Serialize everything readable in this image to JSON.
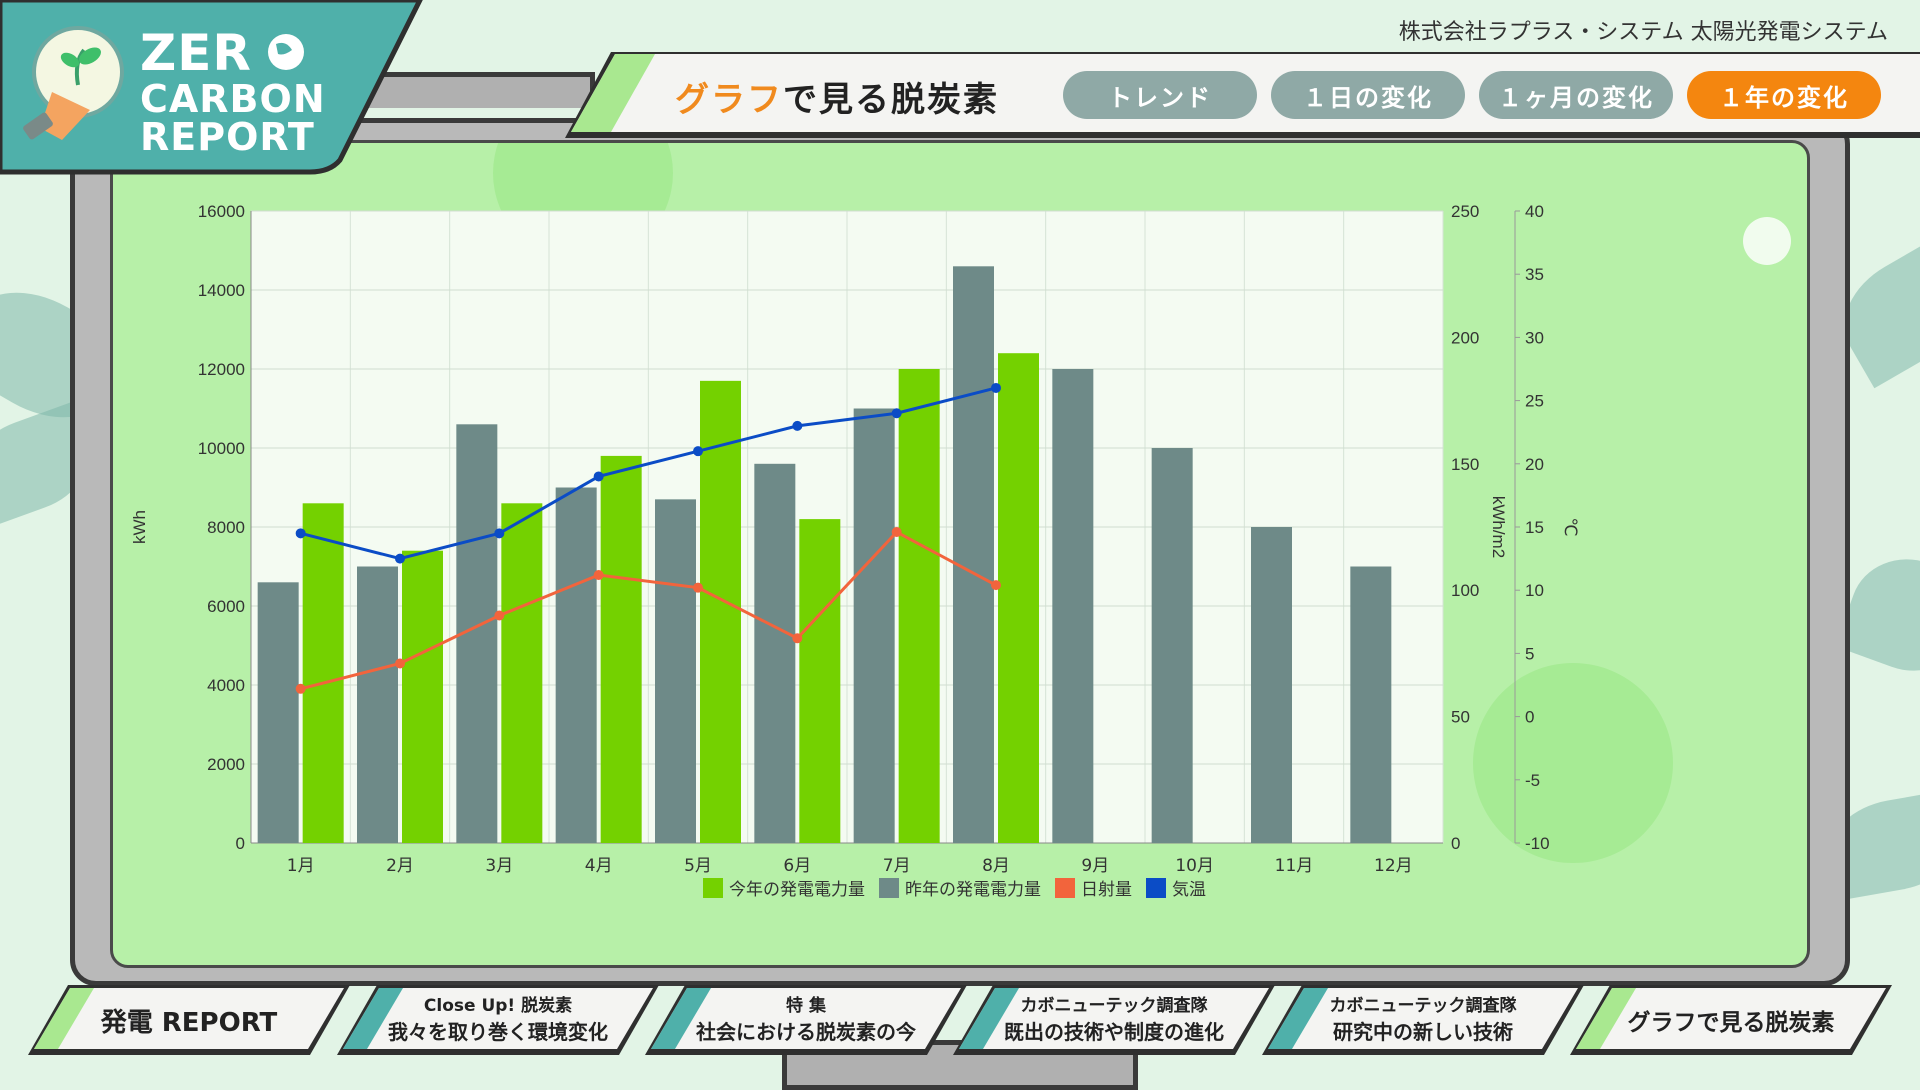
{
  "app": {
    "logo_line1": "ZER",
    "logo_line2": "CARBON",
    "logo_line3": "REPORT",
    "company": "株式会社ラプラス・システム 太陽光発電システム"
  },
  "header": {
    "title_accent": "グラフ",
    "title_rest": "で見る脱炭素",
    "tabs": [
      {
        "label": "トレンド",
        "active": false
      },
      {
        "label": "１日の変化",
        "active": false
      },
      {
        "label": "１ヶ月の変化",
        "active": false
      },
      {
        "label": "１年の変化",
        "active": true
      }
    ]
  },
  "nav": [
    {
      "line1": "",
      "line2": "発電 REPORT"
    },
    {
      "line1": "Close Up! 脱炭素",
      "line2": "我々を取り巻く環境変化"
    },
    {
      "line1": "特 集",
      "line2": "社会における脱炭素の今"
    },
    {
      "line1": "カボニューテック調査隊",
      "line2": "既出の技術や制度の進化"
    },
    {
      "line1": "カボニューテック調査隊",
      "line2": "研究中の新しい技術"
    },
    {
      "line1": "",
      "line2": "グラフで見る脱炭素"
    }
  ],
  "colors": {
    "this_year": "#74d100",
    "last_year": "#6e8a88",
    "irradiance": "#f2643c",
    "temperature": "#0b4cc6",
    "accent": "#f4860f",
    "teal": "#4fb0aa"
  },
  "chart_data": {
    "type": "bar",
    "categories": [
      "1月",
      "2月",
      "3月",
      "4月",
      "5月",
      "6月",
      "7月",
      "8月",
      "9月",
      "10月",
      "11月",
      "12月"
    ],
    "series": [
      {
        "name": "今年の発電電力量",
        "type": "bar",
        "axis": "kWh",
        "values": [
          8600,
          7400,
          8600,
          9800,
          11700,
          8200,
          12000,
          12400,
          null,
          null,
          null,
          null
        ]
      },
      {
        "name": "昨年の発電電力量",
        "type": "bar",
        "axis": "kWh",
        "values": [
          6600,
          7000,
          10600,
          9000,
          8700,
          9600,
          11000,
          14600,
          12000,
          10000,
          8000,
          7000
        ]
      },
      {
        "name": "日射量",
        "type": "line",
        "axis": "kWh/m2",
        "values": [
          61,
          71,
          90,
          106,
          101,
          81,
          123,
          102,
          null,
          null,
          null,
          null
        ]
      },
      {
        "name": "気温",
        "type": "line",
        "axis": "℃",
        "values": [
          14.5,
          12.5,
          14.5,
          19,
          21,
          23,
          24,
          26,
          null,
          null,
          null,
          null
        ]
      }
    ],
    "axes": {
      "left": {
        "label": "kWh",
        "min": 0,
        "max": 16000,
        "ticks": [
          "0",
          "2000",
          "4000",
          "6000",
          "8000",
          "10000",
          "12000",
          "14000",
          "16000"
        ]
      },
      "right1": {
        "label": "kWh/m2",
        "min": 0,
        "max": 250,
        "ticks": [
          "0",
          "50",
          "100",
          "150",
          "200",
          "250"
        ]
      },
      "right2": {
        "label": "℃",
        "min": -10,
        "max": 40,
        "ticks": [
          "-10",
          "-5",
          "0",
          "5",
          "10",
          "15",
          "20",
          "25",
          "30",
          "35",
          "40"
        ]
      }
    },
    "legend_position": "bottom",
    "grid": true
  }
}
